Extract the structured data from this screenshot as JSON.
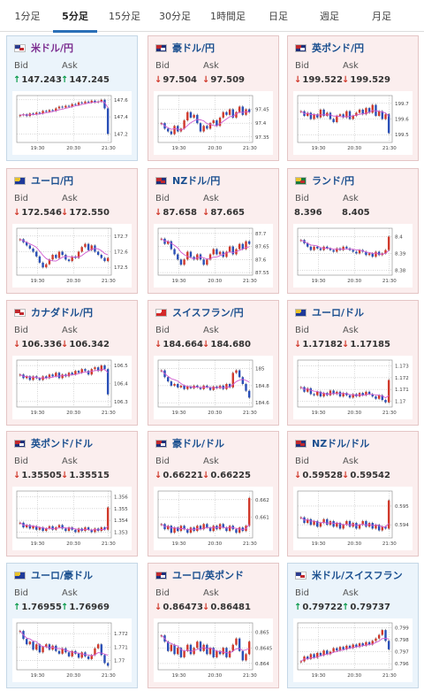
{
  "tabs": [
    {
      "label": "1分足",
      "active": false
    },
    {
      "label": "5分足",
      "active": true
    },
    {
      "label": "15分足",
      "active": false
    },
    {
      "label": "30分足",
      "active": false
    },
    {
      "label": "1時間足",
      "active": false
    },
    {
      "label": "日足",
      "active": false
    },
    {
      "label": "週足",
      "active": false
    },
    {
      "label": "月足",
      "active": false
    }
  ],
  "colors": {
    "up_arrow": "#0a9a4a",
    "down_arrow": "#d0392b",
    "candle_up": "#d0392b",
    "candle_down": "#2a4fb7",
    "moving_average": "#d05ad0",
    "pair_name": "#1a4f8f",
    "card_up_bg": "#ebf4fb",
    "card_down_bg": "#fbeeee"
  },
  "bid_label": "Bid",
  "ask_label": "Ask",
  "pairs": [
    {
      "name": "米ドル/円",
      "name_color": "#7b2c8f",
      "flag": "us",
      "direction": "up",
      "bid": "147.243",
      "ask": "147.245",
      "chart": {
        "yticks": [
          "147.6",
          "147.4",
          "147.2"
        ],
        "ymin": 147.1,
        "ymax": 147.65,
        "xticks": [
          "19:30",
          "20:30",
          "21:30"
        ],
        "closes": [
          147.42,
          147.43,
          147.41,
          147.44,
          147.43,
          147.45,
          147.44,
          147.47,
          147.46,
          147.48,
          147.47,
          147.5,
          147.52,
          147.51,
          147.53,
          147.52,
          147.55,
          147.54,
          147.57,
          147.56,
          147.58,
          147.57,
          147.59,
          147.57,
          147.58,
          147.6,
          147.5,
          147.2
        ]
      }
    },
    {
      "name": "豪ドル/円",
      "flag": "au",
      "direction": "down",
      "bid": "97.504",
      "ask": "97.509",
      "chart": {
        "yticks": [
          "97.45",
          "97.4",
          "97.35"
        ],
        "ymin": 97.33,
        "ymax": 97.5,
        "xticks": [
          "19:30",
          "20:30",
          "21:30"
        ],
        "closes": [
          97.4,
          97.38,
          97.37,
          97.36,
          97.39,
          97.37,
          97.38,
          97.41,
          97.44,
          97.42,
          97.43,
          97.4,
          97.37,
          97.39,
          97.38,
          97.4,
          97.41,
          97.39,
          97.42,
          97.44,
          97.43,
          97.45,
          97.42,
          97.44,
          97.46,
          97.43,
          97.45,
          97.44
        ]
      }
    },
    {
      "name": "英ポンド/円",
      "flag": "uk",
      "direction": "down",
      "bid": "199.522",
      "ask": "199.529",
      "chart": {
        "yticks": [
          "199.7",
          "199.6",
          "199.5"
        ],
        "ymin": 199.45,
        "ymax": 199.75,
        "xticks": [
          "19:30",
          "20:30",
          "21:30"
        ],
        "closes": [
          199.65,
          199.62,
          199.64,
          199.6,
          199.63,
          199.61,
          199.66,
          199.62,
          199.64,
          199.6,
          199.58,
          199.62,
          199.63,
          199.61,
          199.65,
          199.6,
          199.62,
          199.64,
          199.66,
          199.63,
          199.67,
          199.64,
          199.69,
          199.62,
          199.65,
          199.6,
          199.63,
          199.51
        ]
      }
    },
    {
      "name": "ユーロ/円",
      "flag": "eu",
      "direction": "down",
      "bid": "172.546",
      "ask": "172.550",
      "chart": {
        "yticks": [
          "172.7",
          "172.6",
          "172.5"
        ],
        "ymin": 172.45,
        "ymax": 172.75,
        "xticks": [
          "19:30",
          "20:30",
          "21:30"
        ],
        "closes": [
          172.68,
          172.66,
          172.64,
          172.62,
          172.6,
          172.57,
          172.53,
          172.5,
          172.52,
          172.55,
          172.58,
          172.56,
          172.6,
          172.58,
          172.55,
          172.54,
          172.57,
          172.56,
          172.6,
          172.63,
          172.65,
          172.61,
          172.64,
          172.6,
          172.58,
          172.56,
          172.54,
          172.56
        ]
      }
    },
    {
      "name": "NZドル/円",
      "flag": "nz",
      "direction": "down",
      "bid": "87.658",
      "ask": "87.665",
      "chart": {
        "yticks": [
          "87.7",
          "87.65",
          "87.6",
          "87.55"
        ],
        "ymin": 87.54,
        "ymax": 87.72,
        "xticks": [
          "19:30",
          "20:30",
          "21:30"
        ],
        "closes": [
          87.68,
          87.66,
          87.67,
          87.64,
          87.62,
          87.6,
          87.58,
          87.6,
          87.63,
          87.61,
          87.6,
          87.62,
          87.6,
          87.58,
          87.6,
          87.62,
          87.64,
          87.62,
          87.63,
          87.61,
          87.63,
          87.65,
          87.62,
          87.64,
          87.66,
          87.64,
          87.67,
          87.66
        ]
      }
    },
    {
      "name": "ランド/円",
      "flag": "za",
      "direction": "none",
      "bid": "8.396",
      "ask": "8.405",
      "chart": {
        "yticks": [
          "8.4",
          "8.39",
          "8.38"
        ],
        "ymin": 8.377,
        "ymax": 8.405,
        "xticks": [
          "19:30",
          "20:30",
          "21:30"
        ],
        "closes": [
          8.398,
          8.396,
          8.394,
          8.392,
          8.394,
          8.393,
          8.392,
          8.394,
          8.393,
          8.392,
          8.391,
          8.393,
          8.392,
          8.394,
          8.393,
          8.392,
          8.391,
          8.39,
          8.392,
          8.391,
          8.389,
          8.39,
          8.388,
          8.391,
          8.389,
          8.39,
          8.392,
          8.4
        ]
      }
    },
    {
      "name": "カナダドル/円",
      "flag": "ca",
      "direction": "down",
      "bid": "106.336",
      "ask": "106.342",
      "chart": {
        "yticks": [
          "106.5",
          "106.4",
          "106.3"
        ],
        "ymin": 106.27,
        "ymax": 106.53,
        "xticks": [
          "19:30",
          "20:30",
          "21:30"
        ],
        "closes": [
          106.45,
          106.43,
          106.44,
          106.42,
          106.44,
          106.43,
          106.42,
          106.44,
          106.43,
          106.45,
          106.44,
          106.46,
          106.43,
          106.45,
          106.44,
          106.46,
          106.45,
          106.47,
          106.46,
          106.48,
          106.47,
          106.45,
          106.48,
          106.49,
          106.47,
          106.5,
          106.48,
          106.34
        ]
      }
    },
    {
      "name": "スイスフラン/円",
      "flag": "ch",
      "direction": "down",
      "bid": "184.664",
      "ask": "184.680",
      "chart": {
        "yticks": [
          "185",
          "184.8",
          "184.6"
        ],
        "ymin": 184.55,
        "ymax": 185.1,
        "xticks": [
          "19:30",
          "20:30",
          "21:30"
        ],
        "closes": [
          184.98,
          184.9,
          184.85,
          184.8,
          184.82,
          184.78,
          184.8,
          184.76,
          184.79,
          184.77,
          184.8,
          184.78,
          184.76,
          184.8,
          184.78,
          184.75,
          184.79,
          184.77,
          184.8,
          184.76,
          184.82,
          184.78,
          184.95,
          184.98,
          184.9,
          184.82,
          184.74,
          184.66
        ]
      }
    },
    {
      "name": "ユーロ/ドル",
      "flag": "eu",
      "direction": "down",
      "bid": "1.17182",
      "ask": "1.17185",
      "chart": {
        "yticks": [
          "1.173",
          "1.172",
          "1.171",
          "1.17"
        ],
        "ymin": 1.1695,
        "ymax": 1.1735,
        "xticks": [
          "19:30",
          "20:30",
          "21:30"
        ],
        "closes": [
          1.1712,
          1.1708,
          1.1711,
          1.1706,
          1.1705,
          1.1708,
          1.1704,
          1.1707,
          1.1705,
          1.1709,
          1.1706,
          1.1708,
          1.1704,
          1.1707,
          1.1705,
          1.1703,
          1.1706,
          1.1704,
          1.1707,
          1.1705,
          1.1708,
          1.1706,
          1.1704,
          1.1702,
          1.1705,
          1.1701,
          1.1699,
          1.1718
        ]
      }
    },
    {
      "name": "英ポンド/ドル",
      "flag": "uk",
      "direction": "down",
      "bid": "1.35505",
      "ask": "1.35515",
      "chart": {
        "yticks": [
          "1.356",
          "1.355",
          "1.354",
          "1.353"
        ],
        "ymin": 1.3525,
        "ymax": 1.3565,
        "xticks": [
          "19:30",
          "20:30",
          "21:30"
        ],
        "closes": [
          1.3538,
          1.3534,
          1.3536,
          1.3533,
          1.3535,
          1.3532,
          1.3534,
          1.3531,
          1.3533,
          1.3535,
          1.3532,
          1.3534,
          1.3536,
          1.3533,
          1.3531,
          1.3534,
          1.3532,
          1.353,
          1.3533,
          1.3531,
          1.3534,
          1.3532,
          1.353,
          1.3533,
          1.3531,
          1.3534,
          1.3532,
          1.3551
        ]
      }
    },
    {
      "name": "豪ドル/ドル",
      "flag": "au",
      "direction": "down",
      "bid": "0.66221",
      "ask": "0.66225",
      "chart": {
        "yticks": [
          "0.662",
          "0.661"
        ],
        "ymin": 0.6598,
        "ymax": 0.6625,
        "xticks": [
          "19:30",
          "20:30",
          "21:30"
        ],
        "closes": [
          0.6606,
          0.6603,
          0.6605,
          0.6601,
          0.6604,
          0.6602,
          0.6605,
          0.6603,
          0.6601,
          0.6604,
          0.6602,
          0.6605,
          0.6603,
          0.6606,
          0.6604,
          0.6602,
          0.6605,
          0.6603,
          0.6606,
          0.6604,
          0.6602,
          0.6605,
          0.6603,
          0.6601,
          0.6604,
          0.6602,
          0.6605,
          0.6621
        ]
      }
    },
    {
      "name": "NZドル/ドル",
      "flag": "nz",
      "direction": "down",
      "bid": "0.59528",
      "ask": "0.59542",
      "chart": {
        "yticks": [
          "0.595",
          "0.594"
        ],
        "ymin": 0.5933,
        "ymax": 0.5958,
        "xticks": [
          "19:30",
          "20:30",
          "21:30"
        ],
        "closes": [
          0.5944,
          0.5941,
          0.5943,
          0.594,
          0.5942,
          0.5939,
          0.5941,
          0.5943,
          0.594,
          0.5942,
          0.5939,
          0.5941,
          0.5938,
          0.594,
          0.5942,
          0.5939,
          0.5941,
          0.5938,
          0.594,
          0.5942,
          0.5939,
          0.5941,
          0.5938,
          0.594,
          0.5937,
          0.5939,
          0.5938,
          0.5953
        ]
      }
    },
    {
      "name": "ユーロ/豪ドル",
      "flag": "eu",
      "direction": "up",
      "bid": "1.76955",
      "ask": "1.76969",
      "chart": {
        "yticks": [
          "1.772",
          "1.771",
          "1.77"
        ],
        "ymin": 1.7693,
        "ymax": 1.7728,
        "xticks": [
          "19:30",
          "20:30",
          "21:30"
        ],
        "closes": [
          1.7722,
          1.7716,
          1.7712,
          1.7714,
          1.7708,
          1.7712,
          1.7706,
          1.771,
          1.7712,
          1.7708,
          1.7711,
          1.7707,
          1.7705,
          1.7709,
          1.7706,
          1.7703,
          1.7707,
          1.7705,
          1.7702,
          1.7706,
          1.7703,
          1.7701,
          1.7704,
          1.7709,
          1.7712,
          1.7704,
          1.7698,
          1.7696
        ]
      }
    },
    {
      "name": "ユーロ/英ポンド",
      "flag": "uk",
      "direction": "down",
      "bid": "0.86473",
      "ask": "0.86481",
      "chart": {
        "yticks": [
          "0.865",
          "0.8645",
          "0.864"
        ],
        "ymin": 0.8638,
        "ymax": 0.8653,
        "xticks": [
          "19:30",
          "20:30",
          "21:30"
        ],
        "closes": [
          0.8649,
          0.8647,
          0.8644,
          0.8646,
          0.8643,
          0.8645,
          0.8642,
          0.8644,
          0.8646,
          0.8643,
          0.8645,
          0.8647,
          0.8644,
          0.8646,
          0.8643,
          0.8645,
          0.8642,
          0.8644,
          0.8643,
          0.8645,
          0.8642,
          0.8644,
          0.8646,
          0.8648,
          0.8644,
          0.8641,
          0.8643,
          0.8647
        ]
      }
    },
    {
      "name": "米ドル/スイスフラン",
      "flag": "us",
      "direction": "up",
      "bid": "0.79722",
      "ask": "0.79737",
      "chart": {
        "yticks": [
          "0.799",
          "0.798",
          "0.797",
          "0.796"
        ],
        "ymin": 0.7955,
        "ymax": 0.7994,
        "xticks": [
          "19:30",
          "20:30",
          "21:30"
        ],
        "closes": [
          0.7962,
          0.7966,
          0.7964,
          0.7968,
          0.7965,
          0.7969,
          0.7967,
          0.7971,
          0.7968,
          0.797,
          0.7973,
          0.7971,
          0.7974,
          0.7972,
          0.7975,
          0.7973,
          0.7976,
          0.7974,
          0.7977,
          0.7975,
          0.7978,
          0.7976,
          0.7979,
          0.7981,
          0.7984,
          0.7988,
          0.7979,
          0.7972
        ]
      }
    }
  ]
}
